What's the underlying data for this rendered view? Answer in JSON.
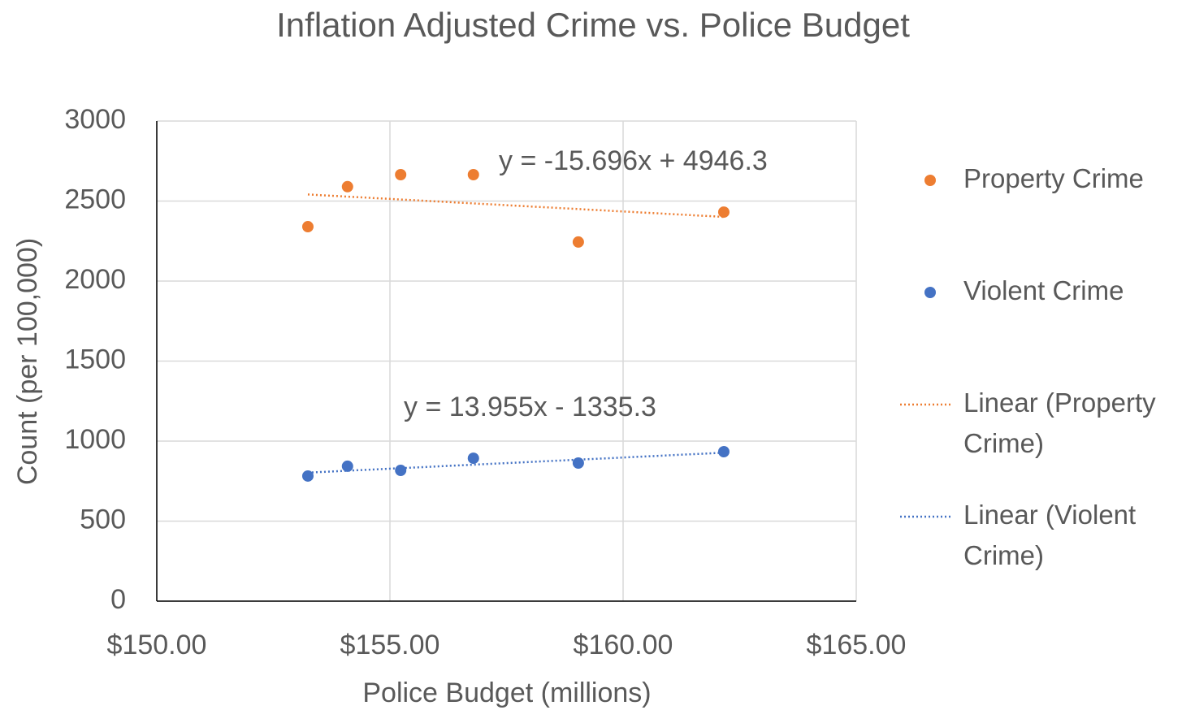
{
  "chart_data": {
    "type": "scatter",
    "title": "Inflation Adjusted Crime vs. Police Budget",
    "xlabel": "Police Budget (millions)",
    "ylabel": "Count (per 100,000)",
    "xlim": [
      150,
      165
    ],
    "ylim": [
      0,
      3000
    ],
    "xticks": [
      {
        "value": 150,
        "label": "$150.00"
      },
      {
        "value": 155,
        "label": "$155.00"
      },
      {
        "value": 160,
        "label": "$160.00"
      },
      {
        "value": 165,
        "label": "$165.00"
      }
    ],
    "yticks": [
      0,
      500,
      1000,
      1500,
      2000,
      2500,
      3000
    ],
    "grid": true,
    "legend": "right",
    "series": [
      {
        "name": "Property Crime",
        "color": "#ED7D31",
        "x": [
          153.24,
          154.09,
          155.23,
          156.79,
          159.04,
          162.16
        ],
        "values": [
          2340,
          2590,
          2665,
          2665,
          2244,
          2431
        ]
      },
      {
        "name": "Violent Crime",
        "color": "#4472C4",
        "x": [
          153.24,
          154.09,
          155.23,
          156.79,
          159.04,
          162.16
        ],
        "values": [
          782,
          843,
          817,
          893,
          863,
          934
        ]
      }
    ],
    "trendlines": [
      {
        "name": "Linear (Property Crime)",
        "color": "#ED7D31",
        "slope": -15.696,
        "intercept": 4946.3,
        "label": "y = -15.696x + 4946.3"
      },
      {
        "name": "Linear (Violent Crime)",
        "color": "#4472C4",
        "slope": 13.955,
        "intercept": -1335.3,
        "label": "y = 13.955x - 1335.3"
      }
    ]
  }
}
